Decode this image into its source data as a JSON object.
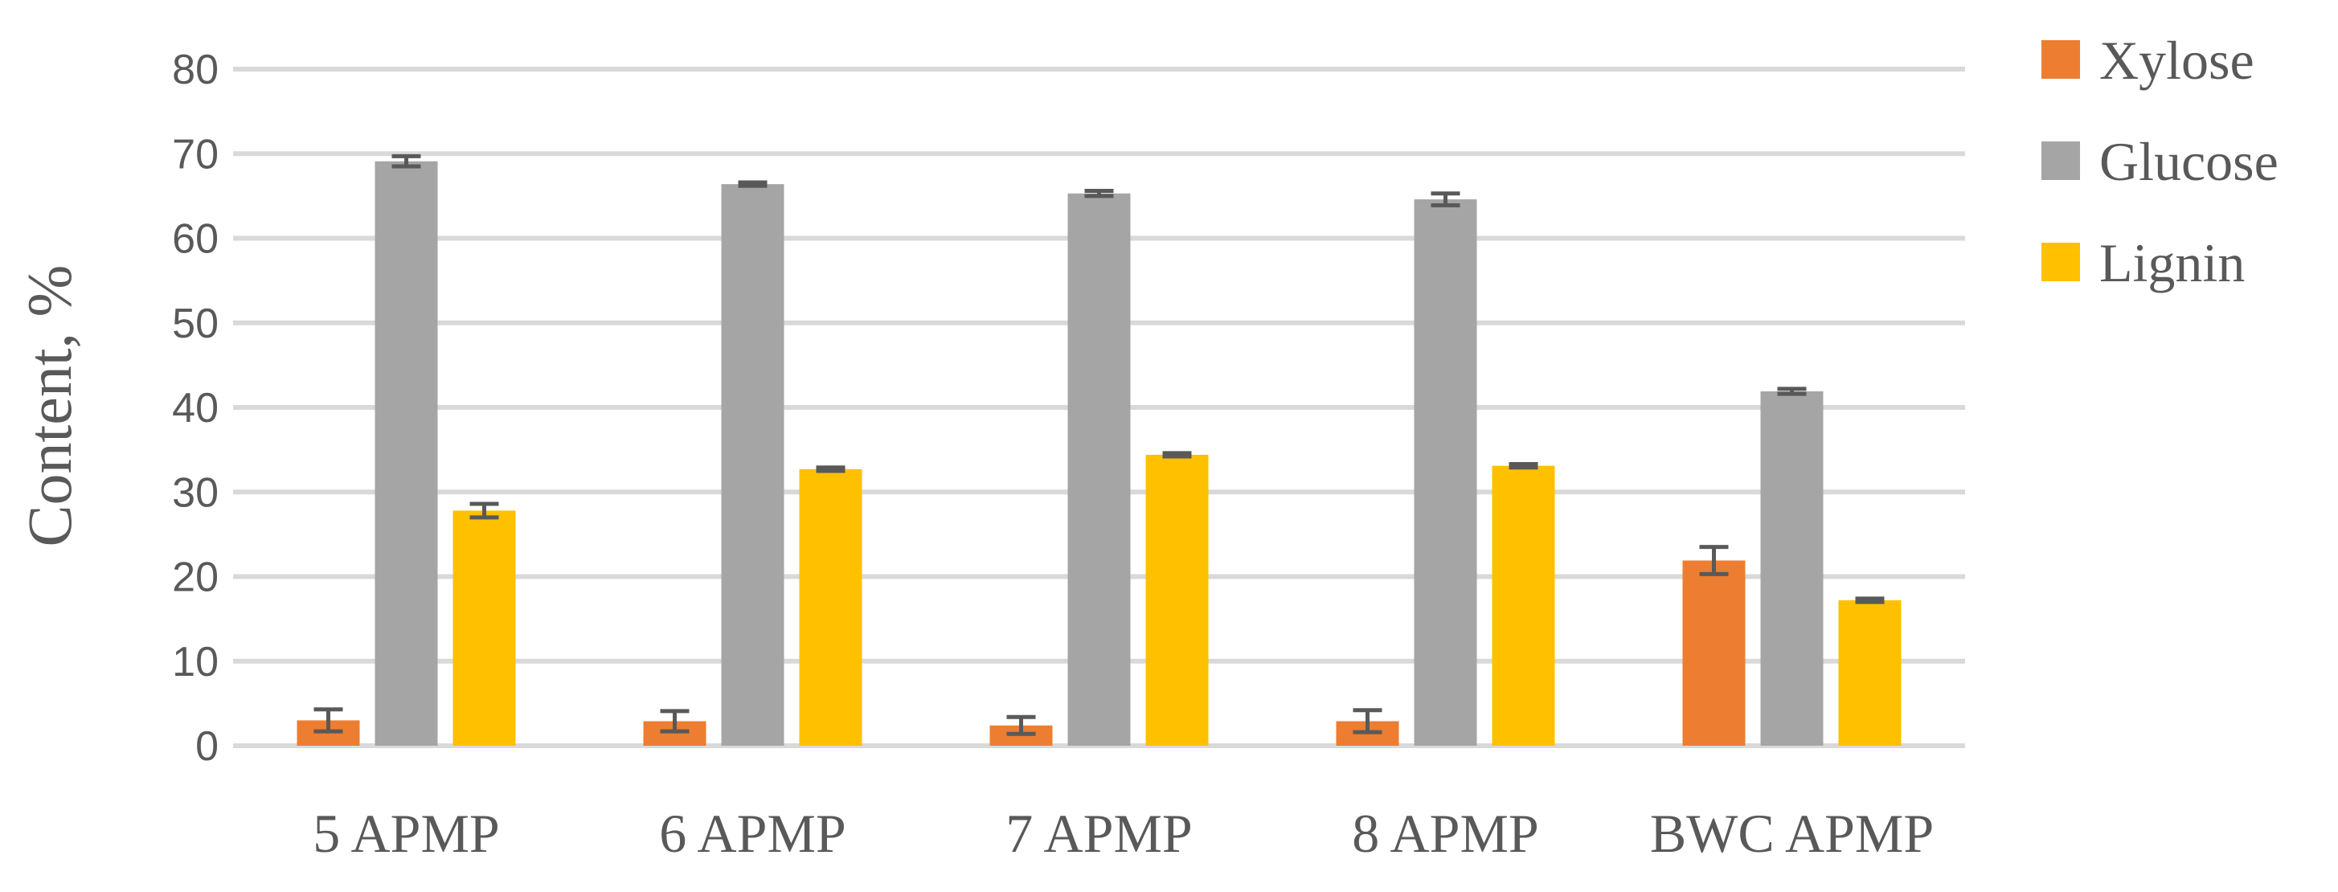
{
  "chart_data": {
    "type": "bar",
    "title": "",
    "xlabel": "",
    "ylabel": "Content, %",
    "ylim": [
      0,
      80
    ],
    "yticks": [
      "0",
      "10",
      "20",
      "30",
      "40",
      "50",
      "60",
      "70",
      "80"
    ],
    "grid": true,
    "legend_position": "top-right",
    "categories": [
      "5 APMP",
      "6 APMP",
      "7 APMP",
      "8 APMP",
      "BWC APMP"
    ],
    "series": [
      {
        "name": "Xylose",
        "color": "#ED7D31",
        "values": [
          3.0,
          2.9,
          2.4,
          2.9,
          21.9
        ],
        "errors": [
          1.3,
          1.2,
          1.0,
          1.3,
          1.6
        ]
      },
      {
        "name": "Glucose",
        "color": "#A5A5A5",
        "values": [
          69.1,
          66.4,
          65.3,
          64.6,
          41.9
        ],
        "errors": [
          0.6,
          0.2,
          0.3,
          0.7,
          0.3
        ]
      },
      {
        "name": "Lignin",
        "color": "#FFC000",
        "values": [
          27.8,
          32.7,
          34.4,
          33.1,
          17.2
        ],
        "errors": [
          0.8,
          0.2,
          0.2,
          0.2,
          0.2
        ]
      }
    ]
  }
}
